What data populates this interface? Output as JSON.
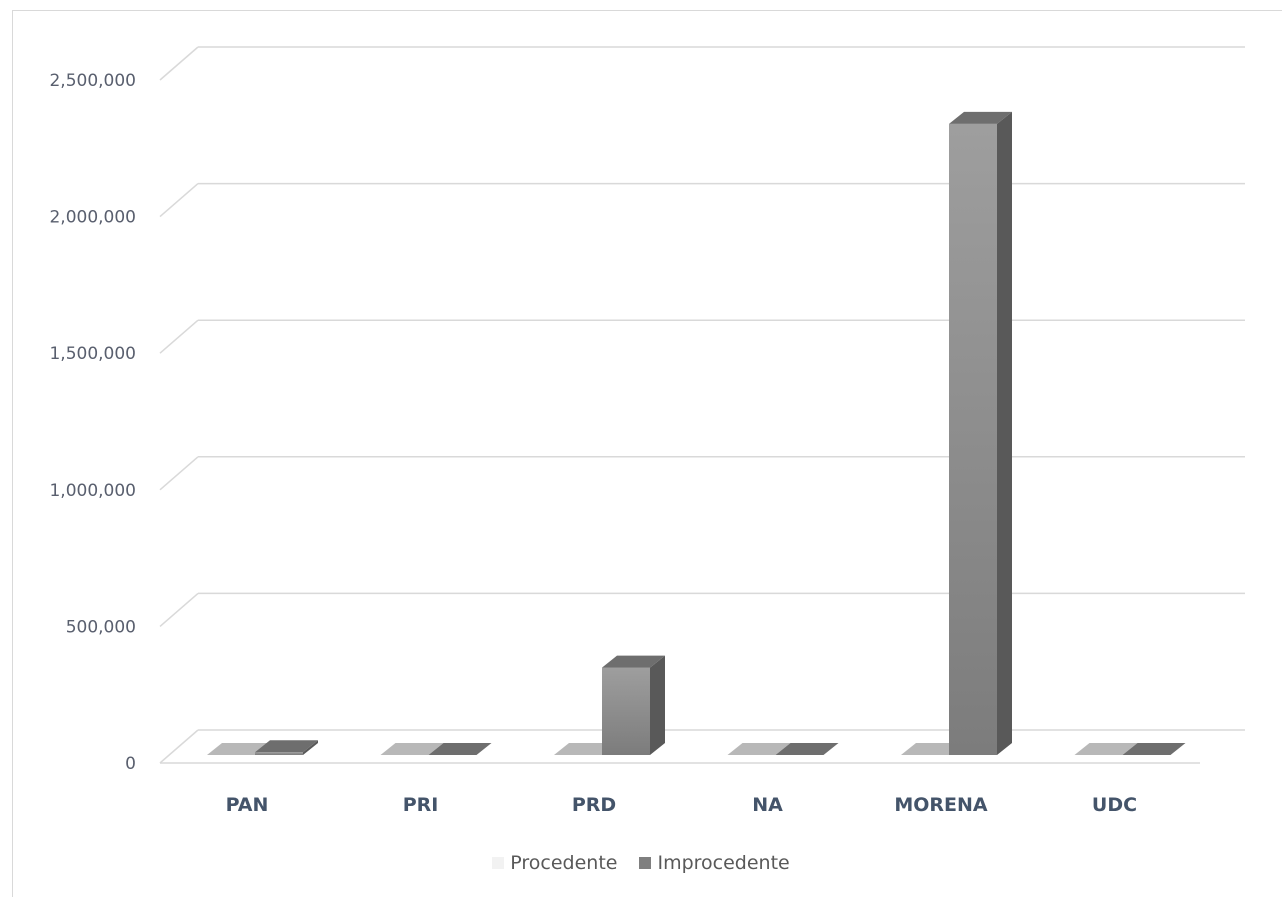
{
  "chart_data": {
    "type": "bar",
    "categories": [
      "PAN",
      "PRI",
      "PRD",
      "NA",
      "MORENA",
      "UDC"
    ],
    "series": [
      {
        "name": "Procedente",
        "values": [
          0,
          0,
          0,
          0,
          0,
          0
        ],
        "color": "#f2f2f2"
      },
      {
        "name": "Improcedente",
        "values": [
          10000,
          0,
          320000,
          0,
          2310000,
          0
        ],
        "color": "#7f7f7f"
      }
    ],
    "yticks": [
      0,
      500000,
      1000000,
      1500000,
      2000000,
      2500000
    ],
    "ytick_labels": [
      "0",
      "500,000",
      "1,000,000",
      "1,500,000",
      "2,000,000",
      "2,500,000"
    ],
    "ylim": [
      0,
      2500000
    ],
    "grid": true,
    "legend": "bottom",
    "title": "",
    "xlabel": "",
    "ylabel": ""
  }
}
